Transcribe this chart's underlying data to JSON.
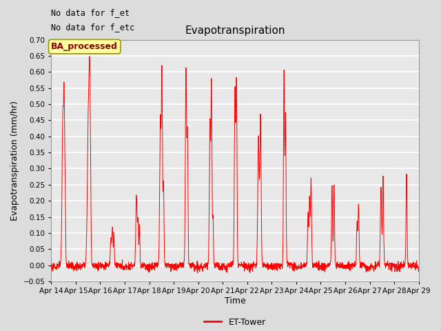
{
  "title": "Evapotranspiration",
  "ylabel": "Evapotranspiration (mm/hr)",
  "xlabel": "Time",
  "annotation_lines": [
    "No data for f_et",
    "No data for f_etc"
  ],
  "legend_box_label": "BA_processed",
  "legend_line_label": "ET-Tower",
  "ylim": [
    -0.05,
    0.7
  ],
  "line_color": "#FF0000",
  "bg_color": "#DCDCDC",
  "plot_bg_color": "#E8E8E8",
  "grid_color": "#FFFFFF",
  "start_day": 14,
  "end_day": 29,
  "figsize": [
    6.4,
    4.8
  ],
  "dpi": 100,
  "day_segments": [
    {
      "day": 0,
      "peaks": [
        {
          "hour": 11.5,
          "val": 0.47,
          "sig": 0.8
        },
        {
          "hour": 12.8,
          "val": 0.41,
          "sig": 0.5
        },
        {
          "hour": 13.8,
          "val": 0.2,
          "sig": 0.4
        }
      ]
    },
    {
      "day": 1,
      "peaks": [
        {
          "hour": 12.5,
          "val": 0.47,
          "sig": 1.0
        },
        {
          "hour": 14.0,
          "val": 0.46,
          "sig": 0.7
        }
      ]
    },
    {
      "day": 2,
      "peaks": [
        {
          "hour": 10.5,
          "val": 0.08,
          "sig": 0.6
        },
        {
          "hour": 12.0,
          "val": 0.12,
          "sig": 0.5
        },
        {
          "hour": 13.5,
          "val": 0.1,
          "sig": 0.4
        }
      ]
    },
    {
      "day": 3,
      "peaks": [
        {
          "hour": 11.5,
          "val": 0.22,
          "sig": 0.6
        },
        {
          "hour": 13.0,
          "val": 0.14,
          "sig": 0.5
        },
        {
          "hour": 14.5,
          "val": 0.13,
          "sig": 0.4
        }
      ]
    },
    {
      "day": 4,
      "peaks": [
        {
          "hour": 11.0,
          "val": 0.45,
          "sig": 0.7
        },
        {
          "hour": 12.5,
          "val": 0.57,
          "sig": 0.5
        },
        {
          "hour": 14.0,
          "val": 0.25,
          "sig": 0.5
        }
      ]
    },
    {
      "day": 5,
      "peaks": [
        {
          "hour": 12.0,
          "val": 0.61,
          "sig": 0.6
        },
        {
          "hour": 13.5,
          "val": 0.4,
          "sig": 0.5
        }
      ]
    },
    {
      "day": 6,
      "peaks": [
        {
          "hour": 11.5,
          "val": 0.45,
          "sig": 0.6
        },
        {
          "hour": 13.0,
          "val": 0.57,
          "sig": 0.5
        },
        {
          "hour": 14.5,
          "val": 0.15,
          "sig": 0.4
        }
      ]
    },
    {
      "day": 7,
      "peaks": [
        {
          "hour": 12.0,
          "val": 0.55,
          "sig": 0.6
        },
        {
          "hour": 13.5,
          "val": 0.56,
          "sig": 0.5
        }
      ]
    },
    {
      "day": 8,
      "peaks": [
        {
          "hour": 11.0,
          "val": 0.4,
          "sig": 0.7
        },
        {
          "hour": 13.0,
          "val": 0.46,
          "sig": 0.6
        }
      ]
    },
    {
      "day": 9,
      "peaks": [
        {
          "hour": 12.0,
          "val": 0.61,
          "sig": 0.5
        },
        {
          "hour": 13.5,
          "val": 0.47,
          "sig": 0.5
        }
      ]
    },
    {
      "day": 10,
      "peaks": [
        {
          "hour": 11.5,
          "val": 0.16,
          "sig": 0.5
        },
        {
          "hour": 13.0,
          "val": 0.21,
          "sig": 0.5
        },
        {
          "hour": 14.5,
          "val": 0.27,
          "sig": 0.5
        }
      ]
    },
    {
      "day": 11,
      "peaks": [
        {
          "hour": 11.0,
          "val": 0.25,
          "sig": 0.5
        },
        {
          "hour": 13.0,
          "val": 0.25,
          "sig": 0.5
        }
      ]
    },
    {
      "day": 12,
      "peaks": [
        {
          "hour": 11.5,
          "val": 0.13,
          "sig": 0.5
        },
        {
          "hour": 13.0,
          "val": 0.19,
          "sig": 0.5
        }
      ]
    },
    {
      "day": 13,
      "peaks": [
        {
          "hour": 11.0,
          "val": 0.24,
          "sig": 0.6
        },
        {
          "hour": 13.0,
          "val": 0.28,
          "sig": 0.5
        }
      ]
    },
    {
      "day": 14,
      "peaks": [
        {
          "hour": 12.0,
          "val": 0.28,
          "sig": 0.5
        }
      ]
    }
  ]
}
